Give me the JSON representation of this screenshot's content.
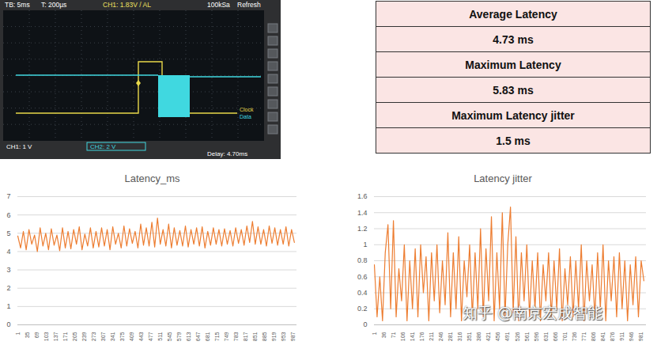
{
  "scope": {
    "header": [
      "TB: 5ms",
      "T: 200µs",
      "CH1: 1.83V / AL",
      "100kSa",
      "Refresh"
    ],
    "traces": [
      "Clock",
      "Data"
    ],
    "footer": [
      "CH1: 1 V",
      "CH2: 2 V",
      "Delay: 4.70ms"
    ]
  },
  "table": {
    "rows": [
      [
        "Average Latency"
      ],
      [
        "4.73 ms"
      ],
      [
        "Maximum Latency"
      ],
      [
        "5.83 ms"
      ],
      [
        "Maximum Latency jitter"
      ],
      [
        "1.5 ms"
      ]
    ]
  },
  "chart_data": [
    {
      "type": "line",
      "title": "Latency_ms",
      "color": "#ed7d31",
      "grid": true,
      "x": [
        1,
        11,
        21,
        31,
        41,
        51,
        61,
        71,
        81,
        91,
        101,
        111,
        121,
        131,
        141,
        151,
        161,
        171,
        181,
        191,
        201,
        211,
        221,
        231,
        241,
        251,
        261,
        271,
        281,
        291,
        301,
        311,
        321,
        331,
        341,
        351,
        361,
        371,
        381,
        391,
        401,
        411,
        421,
        431,
        441,
        451,
        461,
        471,
        481,
        491,
        501,
        511,
        521,
        531,
        541,
        551,
        561,
        571,
        581,
        591,
        601,
        611,
        621,
        631,
        641,
        651,
        661,
        671,
        681,
        691,
        701,
        711,
        721,
        731,
        741,
        751,
        761,
        771,
        781,
        791,
        801,
        811,
        821,
        831,
        841,
        851,
        861,
        871,
        881,
        891,
        901,
        911,
        921,
        931,
        941,
        951,
        961,
        971,
        981,
        991
      ],
      "values": [
        4.85,
        4.2,
        5.1,
        4.1,
        5.2,
        4.4,
        4.9,
        4.0,
        5.3,
        4.3,
        5.0,
        4.1,
        5.25,
        4.35,
        4.9,
        4.05,
        5.3,
        4.2,
        5.1,
        4.15,
        5.2,
        4.4,
        5.35,
        4.1,
        4.95,
        4.3,
        5.3,
        4.2,
        5.1,
        4.25,
        5.3,
        4.3,
        5.2,
        4.1,
        5.35,
        4.4,
        5.0,
        4.2,
        5.4,
        4.3,
        5.25,
        4.45,
        5.1,
        4.2,
        5.5,
        4.35,
        5.3,
        4.3,
        5.6,
        4.25,
        5.83,
        4.4,
        5.2,
        4.3,
        5.5,
        4.2,
        5.3,
        4.35,
        5.15,
        4.3,
        5.4,
        4.25,
        5.2,
        4.4,
        5.3,
        4.3,
        5.35,
        4.2,
        5.1,
        4.35,
        5.3,
        4.4,
        5.2,
        4.3,
        5.25,
        4.4,
        5.15,
        4.3,
        5.3,
        4.45,
        5.2,
        4.35,
        5.4,
        4.5,
        5.65,
        4.4,
        5.35,
        4.4,
        5.2,
        4.3,
        5.4,
        4.45,
        5.3,
        4.35,
        5.2,
        4.4,
        5.35,
        4.3,
        5.2,
        4.5
      ],
      "xlim": [
        1,
        1000
      ],
      "xticks": [
        1,
        35,
        69,
        103,
        137,
        171,
        205,
        239,
        273,
        307,
        341,
        375,
        409,
        443,
        477,
        511,
        545,
        579,
        613,
        647,
        681,
        715,
        749,
        783,
        817,
        851,
        885,
        919,
        953,
        987
      ],
      "ylim": [
        0,
        7
      ],
      "yticks": [
        0,
        1,
        2,
        3,
        4,
        5,
        6,
        7
      ]
    },
    {
      "type": "line",
      "title": "Latency jitter",
      "color": "#ed7d31",
      "grid": true,
      "x": [
        1,
        11,
        21,
        31,
        41,
        51,
        61,
        71,
        81,
        91,
        101,
        111,
        121,
        131,
        141,
        151,
        161,
        171,
        181,
        191,
        201,
        211,
        221,
        231,
        241,
        251,
        261,
        271,
        281,
        291,
        301,
        311,
        321,
        331,
        341,
        351,
        361,
        371,
        381,
        391,
        401,
        411,
        421,
        431,
        441,
        451,
        461,
        471,
        481,
        491,
        501,
        511,
        521,
        531,
        541,
        551,
        561,
        571,
        581,
        591,
        601,
        611,
        621,
        631,
        641,
        651,
        661,
        671,
        681,
        691,
        701,
        711,
        721,
        731,
        741,
        751,
        761,
        771,
        781,
        791,
        801,
        811,
        821,
        831,
        841,
        851,
        861,
        871,
        881,
        891,
        901,
        911,
        921,
        931,
        941,
        951,
        961,
        971,
        981,
        991
      ],
      "values": [
        0.75,
        0.1,
        0.6,
        0.05,
        0.9,
        1.25,
        0.2,
        1.3,
        0.1,
        0.7,
        0.3,
        1.0,
        0.05,
        0.8,
        0.2,
        0.95,
        0.1,
        1.0,
        0.4,
        0.85,
        0.05,
        0.9,
        0.3,
        1.0,
        0.15,
        0.8,
        0.25,
        1.15,
        0.1,
        0.9,
        0.2,
        1.1,
        0.05,
        0.8,
        0.35,
        1.0,
        0.1,
        0.9,
        0.2,
        1.2,
        0.1,
        0.95,
        0.3,
        1.35,
        0.05,
        0.9,
        0.2,
        1.4,
        0.1,
        1.0,
        1.47,
        0.15,
        1.1,
        0.05,
        0.9,
        0.3,
        1.0,
        0.1,
        0.8,
        0.2,
        0.9,
        0.05,
        0.75,
        0.3,
        0.9,
        0.1,
        0.8,
        0.2,
        0.95,
        0.05,
        0.7,
        0.25,
        0.85,
        0.1,
        0.8,
        0.2,
        1.0,
        0.05,
        0.8,
        0.3,
        0.75,
        0.1,
        0.9,
        0.2,
        1.0,
        0.05,
        0.8,
        0.3,
        0.85,
        0.1,
        0.9,
        0.2,
        0.8,
        0.05,
        0.75,
        0.25,
        0.85,
        0.1,
        0.8,
        0.55
      ],
      "xlim": [
        1,
        1000
      ],
      "xticks": [
        1,
        36,
        71,
        106,
        141,
        176,
        211,
        246,
        281,
        316,
        351,
        386,
        421,
        456,
        491,
        526,
        561,
        596,
        631,
        666,
        701,
        736,
        771,
        806,
        841,
        876,
        911,
        946,
        981
      ],
      "ylim": [
        0,
        1.6
      ],
      "yticks": [
        0,
        0.2,
        0.4,
        0.6,
        0.8,
        1,
        1.2,
        1.4,
        1.6
      ]
    }
  ],
  "watermark": "知乎 @南京宏成智能"
}
